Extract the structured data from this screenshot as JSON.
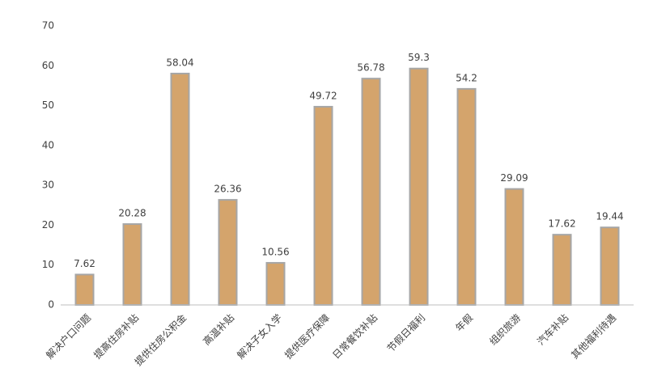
{
  "chart_data": {
    "type": "bar",
    "categories": [
      "解决户口问题",
      "提高住房补贴",
      "提供住房公积金",
      "高温补贴",
      "解决子女入学",
      "提供医疗保障",
      "日常餐饮补贴",
      "节假日福利",
      "年假",
      "组织旅游",
      "汽车补贴",
      "其他福利待遇"
    ],
    "values": [
      7.62,
      20.28,
      58.04,
      26.36,
      10.56,
      49.72,
      56.78,
      59.3,
      54.2,
      29.09,
      17.62,
      19.44
    ],
    "color": "#d4a46c",
    "ylim": [
      0,
      70
    ],
    "yticks": [
      0,
      10,
      20,
      30,
      40,
      50,
      60,
      70
    ],
    "grid": false
  }
}
